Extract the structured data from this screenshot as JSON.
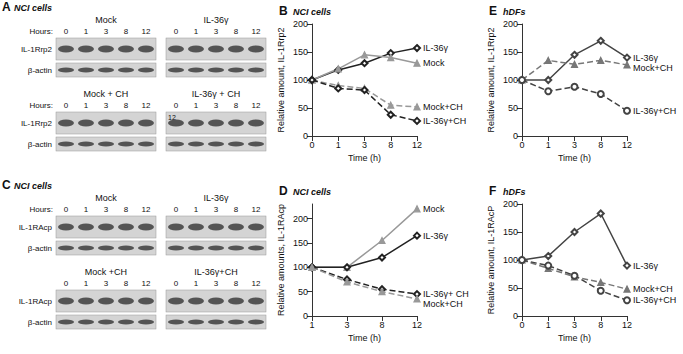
{
  "blot_panels": [
    {
      "panel": "A",
      "title": "NCI cells",
      "groups": [
        {
          "hours_label": "Hours:",
          "rows": [
            "IL-1Rrp2",
            "β-actin"
          ],
          "blots": [
            {
              "condition": "Mock",
              "hours": [
                0,
                1,
                3,
                8,
                12
              ]
            },
            {
              "condition": "IL-36γ",
              "hours": [
                0,
                1,
                3,
                8,
                12
              ]
            }
          ]
        },
        {
          "hours_label": "Hours:",
          "rows": [
            "IL-1Rrp2",
            "β-actin"
          ],
          "blots": [
            {
              "condition": "Mock + CH",
              "hours": [
                0,
                1,
                3,
                8,
                12
              ]
            },
            {
              "condition": "IL-36γ + CH",
              "hours": [
                0,
                1,
                3,
                8,
                12
              ],
              "annotation": "12"
            }
          ]
        }
      ]
    },
    {
      "panel": "C",
      "title": "NCI cells",
      "groups": [
        {
          "hours_label": "Hours:",
          "rows": [
            "IL-1RAcp",
            "β-actin"
          ],
          "blots": [
            {
              "condition": "Mock",
              "hours": [
                0,
                1,
                3,
                8,
                12
              ]
            },
            {
              "condition": "IL-36γ",
              "hours": [
                0,
                1,
                3,
                8,
                12
              ]
            }
          ]
        },
        {
          "rows": [
            "IL-1RAcp",
            "β-actin"
          ],
          "blots": [
            {
              "condition": "Mock +CH",
              "hours": [
                0,
                1,
                3,
                8,
                12
              ]
            },
            {
              "condition": "IL-36γ+CH",
              "hours": [
                0,
                1,
                3,
                8,
                12
              ]
            }
          ]
        }
      ]
    }
  ],
  "chart_data": [
    {
      "panel": "B",
      "type": "line",
      "title": "NCI cells",
      "x_label": "Time (h)",
      "y_label": "Relative amount, IL-1Rrp2",
      "categories": [
        0,
        1,
        3,
        8,
        12
      ],
      "ylim": [
        0,
        200
      ],
      "yticks": [
        0,
        50,
        100,
        150,
        200
      ],
      "grid": false,
      "series": [
        {
          "name": "IL-36γ",
          "color": "#222222",
          "marker": "diamond",
          "line_style": "solid",
          "values": [
            100,
            118,
            130,
            148,
            157
          ]
        },
        {
          "name": "Mock",
          "color": "#999999",
          "marker": "triangle",
          "line_style": "solid",
          "values": [
            100,
            120,
            145,
            140,
            130
          ]
        },
        {
          "name": "Mock+CH",
          "color": "#999999",
          "marker": "triangle",
          "line_style": "dashed",
          "values": [
            100,
            90,
            85,
            55,
            52
          ]
        },
        {
          "name": "IL-36γ+CH",
          "color": "#222222",
          "marker": "diamond",
          "line_style": "dashed",
          "values": [
            100,
            85,
            82,
            38,
            27
          ]
        }
      ]
    },
    {
      "panel": "D",
      "type": "line",
      "title": "NCI cells",
      "x_label": "Time (h)",
      "y_label": "Relative amounts, IL-1RAcp",
      "categories": [
        1,
        3,
        8,
        12
      ],
      "ylim": [
        0,
        230
      ],
      "yticks": [
        0,
        50,
        100,
        150,
        200
      ],
      "grid": false,
      "series": [
        {
          "name": "Mock",
          "color": "#999999",
          "marker": "triangle",
          "line_style": "solid",
          "values": [
            100,
            100,
            155,
            220
          ]
        },
        {
          "name": "IL-36γ",
          "color": "#222222",
          "marker": "diamond",
          "line_style": "solid",
          "values": [
            100,
            100,
            120,
            165
          ]
        },
        {
          "name": "IL-36γ+ CH",
          "color": "#222222",
          "marker": "diamond",
          "line_style": "dashed",
          "values": [
            100,
            75,
            55,
            45
          ]
        },
        {
          "name": "Mock+CH",
          "color": "#999999",
          "marker": "triangle",
          "line_style": "dashed",
          "values": [
            100,
            70,
            50,
            35
          ]
        }
      ]
    },
    {
      "panel": "E",
      "type": "line",
      "title": "hDFs",
      "x_label": "Time (h)",
      "y_label": "Relative amount, IL-1Rrp2",
      "categories": [
        0,
        1,
        3,
        8,
        12
      ],
      "ylim": [
        0,
        200
      ],
      "yticks": [
        0,
        50,
        100,
        150,
        200
      ],
      "grid": false,
      "series": [
        {
          "name": "IL-36γ",
          "color": "#444444",
          "marker": "diamond",
          "line_style": "solid",
          "values": [
            100,
            100,
            145,
            170,
            140
          ]
        },
        {
          "name": "Mock+CH",
          "color": "#777777",
          "marker": "triangle",
          "line_style": "dashed",
          "values": [
            100,
            135,
            128,
            135,
            127
          ]
        },
        {
          "name": "IL-36γ+CH",
          "color": "#444444",
          "marker": "circle",
          "line_style": "dashed",
          "values": [
            100,
            80,
            88,
            75,
            45
          ]
        }
      ]
    },
    {
      "panel": "F",
      "type": "line",
      "title": "hDFs",
      "x_label": "Time (h)",
      "y_label": "Relative amount, IL-1RAcP",
      "categories": [
        0,
        1,
        3,
        8,
        12
      ],
      "ylim": [
        0,
        200
      ],
      "yticks": [
        0,
        50,
        100,
        150,
        200
      ],
      "grid": false,
      "series": [
        {
          "name": "IL-36γ",
          "color": "#444444",
          "marker": "diamond",
          "line_style": "solid",
          "values": [
            100,
            107,
            150,
            183,
            90
          ]
        },
        {
          "name": "Mock+CH",
          "color": "#777777",
          "marker": "triangle",
          "line_style": "dashed",
          "values": [
            100,
            85,
            70,
            60,
            48
          ]
        },
        {
          "name": "IL-36γ+CH",
          "color": "#444444",
          "marker": "circle",
          "line_style": "dashed",
          "values": [
            100,
            90,
            72,
            45,
            28
          ]
        }
      ]
    }
  ]
}
